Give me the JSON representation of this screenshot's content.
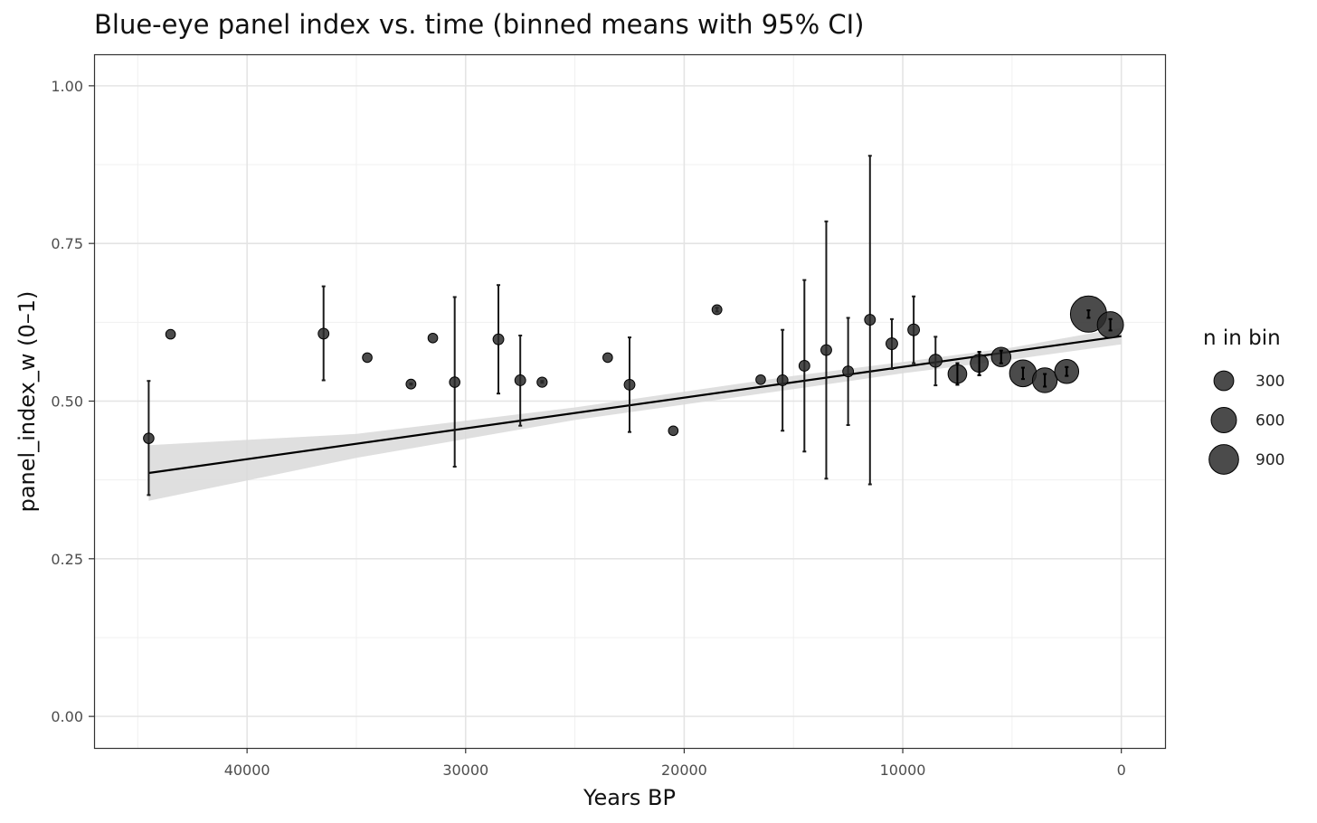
{
  "chart_data": {
    "type": "scatter",
    "title": "Blue-eye panel index vs. time (binned means with 95% CI)",
    "xlabel": "Years BP",
    "ylabel": "panel_index_w (0–1)",
    "x_reversed": true,
    "xlim": [
      47000,
      -2000
    ],
    "ylim": [
      -0.05,
      1.05
    ],
    "x_ticks": [
      40000,
      30000,
      20000,
      10000,
      0
    ],
    "x_tick_labels": [
      "40000",
      "30000",
      "20000",
      "10000",
      "0"
    ],
    "y_ticks": [
      0.0,
      0.25,
      0.5,
      0.75,
      1.0
    ],
    "y_tick_labels": [
      "0.00",
      "0.25",
      "0.50",
      "0.75",
      "1.00"
    ],
    "grid": true,
    "point_color": "#2b2b2b",
    "series": [
      {
        "kind": "binned_means",
        "points": [
          {
            "x": 44500,
            "y": 0.441,
            "lo": 0.351,
            "hi": 0.532,
            "n": 10
          },
          {
            "x": 43500,
            "y": 0.606,
            "lo": null,
            "hi": null,
            "n": 5
          },
          {
            "x": 36500,
            "y": 0.607,
            "lo": 0.533,
            "hi": 0.682,
            "n": 12
          },
          {
            "x": 34500,
            "y": 0.569,
            "lo": null,
            "hi": null,
            "n": 5
          },
          {
            "x": 32500,
            "y": 0.527,
            "lo": 0.526,
            "hi": 0.528,
            "n": 6
          },
          {
            "x": 31500,
            "y": 0.6,
            "lo": null,
            "hi": null,
            "n": 5
          },
          {
            "x": 30500,
            "y": 0.53,
            "lo": 0.396,
            "hi": 0.665,
            "n": 10
          },
          {
            "x": 28500,
            "y": 0.598,
            "lo": 0.512,
            "hi": 0.684,
            "n": 12
          },
          {
            "x": 27500,
            "y": 0.533,
            "lo": 0.461,
            "hi": 0.604,
            "n": 12
          },
          {
            "x": 26500,
            "y": 0.53,
            "lo": 0.529,
            "hi": 0.532,
            "n": 8
          },
          {
            "x": 23500,
            "y": 0.569,
            "lo": null,
            "hi": null,
            "n": 5
          },
          {
            "x": 22500,
            "y": 0.526,
            "lo": 0.451,
            "hi": 0.601,
            "n": 12
          },
          {
            "x": 20500,
            "y": 0.453,
            "lo": null,
            "hi": null,
            "n": 5
          },
          {
            "x": 18500,
            "y": 0.645,
            "lo": 0.642,
            "hi": 0.648,
            "n": 6
          },
          {
            "x": 16500,
            "y": 0.534,
            "lo": null,
            "hi": null,
            "n": 5
          },
          {
            "x": 15500,
            "y": 0.533,
            "lo": 0.453,
            "hi": 0.613,
            "n": 12
          },
          {
            "x": 14500,
            "y": 0.556,
            "lo": 0.42,
            "hi": 0.692,
            "n": 12
          },
          {
            "x": 13500,
            "y": 0.581,
            "lo": 0.377,
            "hi": 0.785,
            "n": 12
          },
          {
            "x": 12500,
            "y": 0.547,
            "lo": 0.462,
            "hi": 0.632,
            "n": 12
          },
          {
            "x": 11500,
            "y": 0.629,
            "lo": 0.368,
            "hi": 0.889,
            "n": 12
          },
          {
            "x": 10500,
            "y": 0.591,
            "lo": 0.551,
            "hi": 0.63,
            "n": 20
          },
          {
            "x": 9500,
            "y": 0.613,
            "lo": 0.56,
            "hi": 0.666,
            "n": 20
          },
          {
            "x": 8500,
            "y": 0.564,
            "lo": 0.525,
            "hi": 0.602,
            "n": 35
          },
          {
            "x": 7500,
            "y": 0.543,
            "lo": 0.526,
            "hi": 0.56,
            "n": 150
          },
          {
            "x": 6500,
            "y": 0.56,
            "lo": 0.541,
            "hi": 0.578,
            "n": 130
          },
          {
            "x": 5500,
            "y": 0.57,
            "lo": 0.56,
            "hi": 0.58,
            "n": 170
          },
          {
            "x": 4500,
            "y": 0.544,
            "lo": 0.535,
            "hi": 0.553,
            "n": 450
          },
          {
            "x": 3500,
            "y": 0.533,
            "lo": 0.523,
            "hi": 0.543,
            "n": 360
          },
          {
            "x": 2500,
            "y": 0.547,
            "lo": 0.54,
            "hi": 0.554,
            "n": 330
          },
          {
            "x": 1500,
            "y": 0.638,
            "lo": 0.632,
            "hi": 0.644,
            "n": 1000
          },
          {
            "x": 500,
            "y": 0.621,
            "lo": 0.612,
            "hi": 0.63,
            "n": 420
          }
        ]
      },
      {
        "kind": "linear_fit",
        "color": "#000000",
        "x": [
          44500,
          0
        ],
        "y": [
          0.386,
          0.603
        ]
      },
      {
        "kind": "confidence_band",
        "color": "#d9d9d9",
        "x": [
          44500,
          35000,
          25000,
          15000,
          10000,
          5000,
          0
        ],
        "lower": [
          0.342,
          0.41,
          0.47,
          0.519,
          0.544,
          0.566,
          0.59
        ],
        "upper": [
          0.43,
          0.448,
          0.49,
          0.54,
          0.562,
          0.585,
          0.616
        ]
      }
    ],
    "legend": {
      "title": "n in bin",
      "placement": "right",
      "entries": [
        {
          "n": 300,
          "label": "300"
        },
        {
          "n": 600,
          "label": "600"
        },
        {
          "n": 900,
          "label": "900"
        }
      ]
    }
  }
}
